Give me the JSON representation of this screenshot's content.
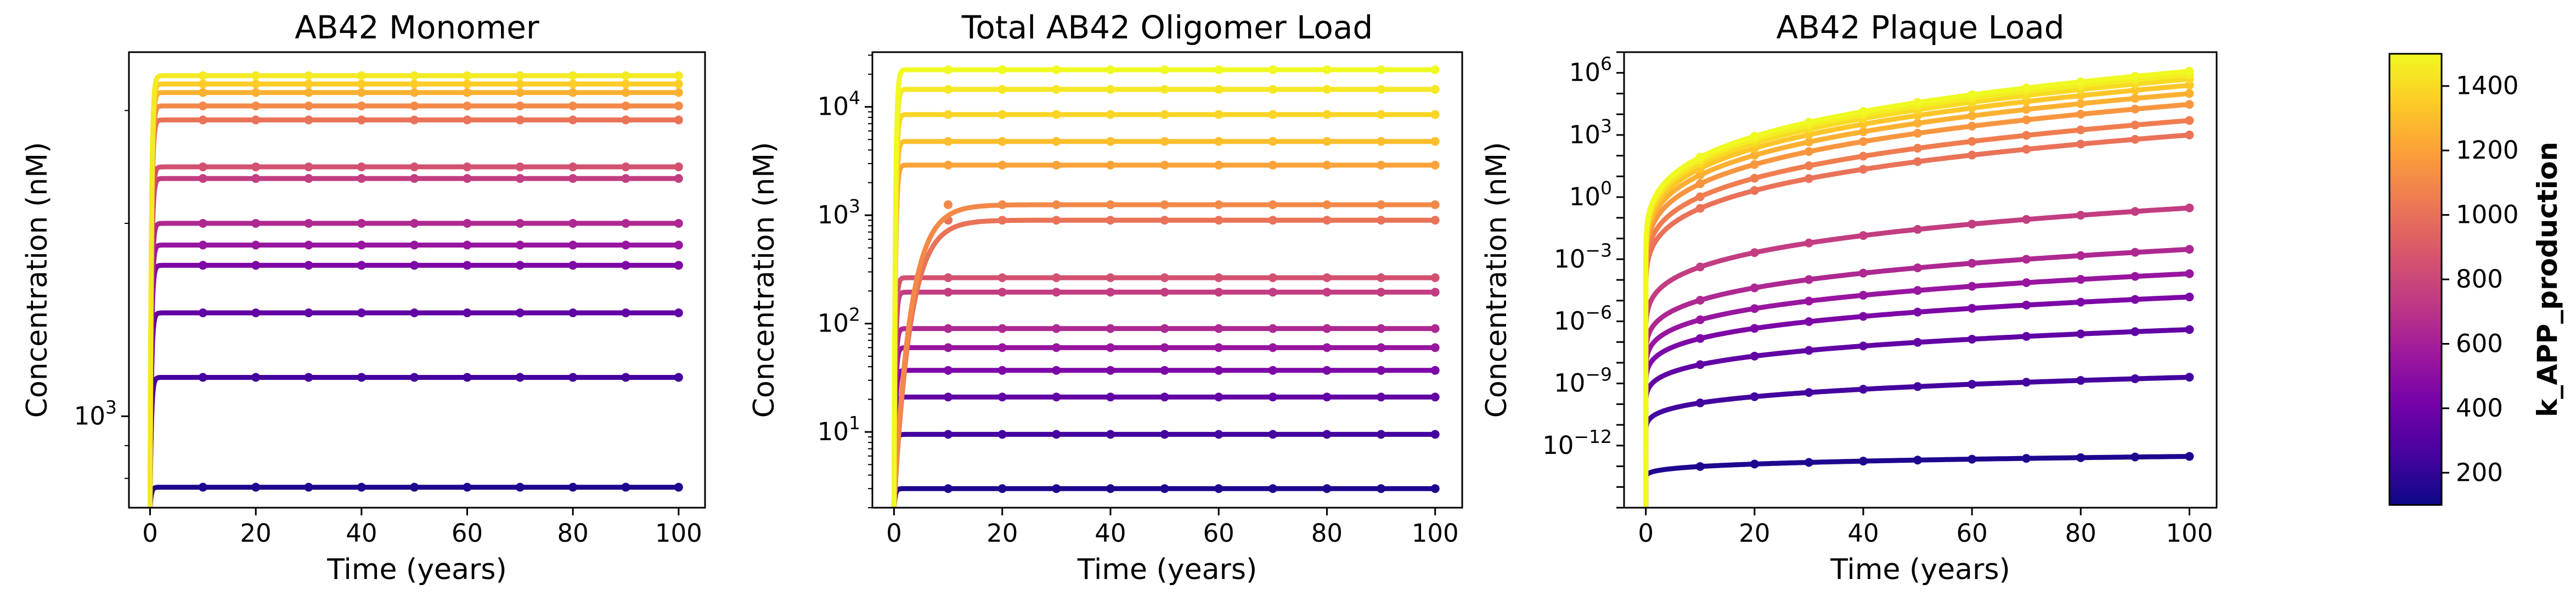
{
  "chart_data": [
    {
      "type": "line",
      "title": "AB42 Monomer",
      "xlabel": "Time (years)",
      "ylabel": "Concentration (nM)",
      "yscale": "log",
      "xlim": [
        -4,
        105
      ],
      "ylim": [
        720,
        3700
      ],
      "xticks": [
        0,
        20,
        40,
        60,
        80,
        100
      ],
      "yticks": [
        {
          "value": 1000,
          "base": "10",
          "exp": "3"
        }
      ],
      "grid": false,
      "series_note_levels": [
        3400,
        3300,
        3200,
        3050,
        2900,
        2450,
        2350,
        2000,
        1850,
        1720,
        1450,
        1150,
        775
      ],
      "series": [
        {
          "k": 150,
          "plateau": 775
        },
        {
          "k": 250,
          "plateau": 1150
        },
        {
          "k": 350,
          "plateau": 1450
        },
        {
          "k": 450,
          "plateau": 1720
        },
        {
          "k": 550,
          "plateau": 1850
        },
        {
          "k": 650,
          "plateau": 2000
        },
        {
          "k": 750,
          "plateau": 2350
        },
        {
          "k": 850,
          "plateau": 2450
        },
        {
          "k": 1000,
          "plateau": 2900
        },
        {
          "k": 1100,
          "plateau": 3050
        },
        {
          "k": 1250,
          "plateau": 3200
        },
        {
          "k": 1350,
          "plateau": 3300
        },
        {
          "k": 1450,
          "plateau": 3400
        }
      ]
    },
    {
      "type": "line",
      "title": "Total AB42 Oligomer Load",
      "xlabel": "Time (years)",
      "ylabel": "Concentration (nM)",
      "yscale": "log",
      "xlim": [
        -4,
        105
      ],
      "ylim": [
        2,
        32000
      ],
      "xticks": [
        0,
        20,
        40,
        60,
        80,
        100
      ],
      "yticks": [
        {
          "value": 10,
          "base": "10",
          "exp": "1"
        },
        {
          "value": 100,
          "base": "10",
          "exp": "2"
        },
        {
          "value": 1000,
          "base": "10",
          "exp": "3"
        },
        {
          "value": 10000,
          "base": "10",
          "exp": "4"
        }
      ],
      "grid": false,
      "series": [
        {
          "k": 150,
          "plateau": 3
        },
        {
          "k": 250,
          "plateau": 9.5
        },
        {
          "k": 350,
          "plateau": 21
        },
        {
          "k": 450,
          "plateau": 37
        },
        {
          "k": 550,
          "plateau": 60
        },
        {
          "k": 650,
          "plateau": 90
        },
        {
          "k": 750,
          "plateau": 195
        },
        {
          "k": 850,
          "plateau": 265
        },
        {
          "k": 1000,
          "plateau": 900
        },
        {
          "k": 1100,
          "plateau": 1250
        },
        {
          "k": 1200,
          "plateau": 2900
        },
        {
          "k": 1300,
          "plateau": 4800
        },
        {
          "k": 1380,
          "plateau": 8500
        },
        {
          "k": 1440,
          "plateau": 14500
        },
        {
          "k": 1500,
          "plateau": 22000
        }
      ]
    },
    {
      "type": "line",
      "title": "AB42 Plaque Load",
      "xlabel": "Time (years)",
      "ylabel": "Concentration (nM)",
      "yscale": "log",
      "xlim": [
        -4,
        105
      ],
      "ylim": [
        1e-15,
        10000000.0
      ],
      "xticks": [
        0,
        20,
        40,
        60,
        80,
        100
      ],
      "yticks": [
        {
          "value": 1e-12,
          "base": "10",
          "exp": "−12"
        },
        {
          "value": 1e-09,
          "base": "10",
          "exp": "−9"
        },
        {
          "value": 1e-06,
          "base": "10",
          "exp": "−6"
        },
        {
          "value": 0.001,
          "base": "10",
          "exp": "−3"
        },
        {
          "value": 1,
          "base": "10",
          "exp": "0"
        },
        {
          "value": 1000.0,
          "base": "10",
          "exp": "3"
        },
        {
          "value": 1000000.0,
          "base": "10",
          "exp": "6"
        }
      ],
      "grid": false,
      "series": [
        {
          "k": 150,
          "y_at_100": 3e-13
        },
        {
          "k": 250,
          "y_at_100": 2e-09
        },
        {
          "k": 350,
          "y_at_100": 4e-07
        },
        {
          "k": 450,
          "y_at_100": 1.5e-05
        },
        {
          "k": 550,
          "y_at_100": 0.0002
        },
        {
          "k": 650,
          "y_at_100": 0.003
        },
        {
          "k": 750,
          "y_at_100": 0.3
        },
        {
          "k": 1000,
          "y_at_100": 1000
        },
        {
          "k": 1050,
          "y_at_100": 5000
        },
        {
          "k": 1150,
          "y_at_100": 30000
        },
        {
          "k": 1250,
          "y_at_100": 100000
        },
        {
          "k": 1330,
          "y_at_100": 250000
        },
        {
          "k": 1400,
          "y_at_100": 500000
        },
        {
          "k": 1460,
          "y_at_100": 800000
        },
        {
          "k": 1500,
          "y_at_100": 1200000
        }
      ]
    }
  ],
  "colorbar": {
    "label": "k_APP_production",
    "colormap": "plasma",
    "range": [
      100,
      1500
    ],
    "ticks": [
      200,
      400,
      600,
      800,
      1000,
      1200,
      1400
    ]
  },
  "colors": {
    "plasma": [
      "#0d0887",
      "#46039f",
      "#7201a8",
      "#9c179e",
      "#bd3786",
      "#d8576b",
      "#ed7953",
      "#fb9f3a",
      "#fdca26",
      "#f0f921"
    ]
  }
}
